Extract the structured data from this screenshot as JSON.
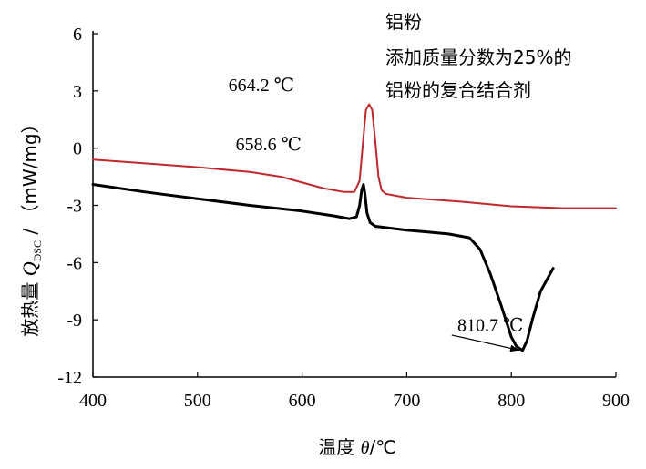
{
  "chart_data": {
    "type": "line",
    "xlabel": {
      "prefix": "温度 ",
      "symbol": "θ",
      "suffix": "/℃"
    },
    "ylabel": {
      "prefix": "放热量 ",
      "symbol": "Q",
      "subscript": "DSC",
      "suffix": " / （mW/mg）"
    },
    "xlim": [
      400,
      900
    ],
    "ylim": [
      -12,
      6
    ],
    "xticks": [
      400,
      500,
      600,
      700,
      800,
      900
    ],
    "yticks": [
      6,
      3,
      0,
      -3,
      -6,
      -9,
      -12
    ],
    "grid": false,
    "legend_text": [
      "铝粉",
      "添加质量分数为25%的",
      "铝粉的复合结合剂"
    ],
    "series": [
      {
        "color": "#c0282b",
        "x": [
          400,
          450,
          500,
          550,
          580,
          600,
          620,
          640,
          650,
          655,
          658,
          661,
          664,
          667,
          670,
          673,
          676,
          680,
          690,
          700,
          750,
          800,
          850,
          900
        ],
        "y": [
          -0.6,
          -0.8,
          -1.0,
          -1.25,
          -1.5,
          -1.8,
          -2.1,
          -2.3,
          -2.3,
          -1.7,
          0.2,
          2.0,
          2.3,
          2.0,
          0.3,
          -1.5,
          -2.2,
          -2.4,
          -2.5,
          -2.6,
          -2.8,
          -3.05,
          -3.15,
          -3.15
        ]
      },
      {
        "color": "#000000",
        "x": [
          400,
          450,
          500,
          550,
          600,
          630,
          645,
          652,
          655,
          657,
          658.6,
          660,
          662,
          665,
          670,
          700,
          720,
          740,
          760,
          770,
          780,
          790,
          800,
          805,
          810.7,
          815,
          820,
          828,
          840
        ],
        "y": [
          -1.9,
          -2.3,
          -2.65,
          -3.0,
          -3.3,
          -3.55,
          -3.7,
          -3.6,
          -3.0,
          -2.2,
          -1.9,
          -2.4,
          -3.4,
          -3.9,
          -4.1,
          -4.3,
          -4.4,
          -4.5,
          -4.7,
          -5.3,
          -6.6,
          -8.2,
          -9.9,
          -10.4,
          -10.6,
          -10.1,
          -9.0,
          -7.5,
          -6.3
        ]
      }
    ],
    "annotations": [
      {
        "text": "664.2 ℃",
        "x": 561,
        "y": 3.0
      },
      {
        "text": "658.6 ℃",
        "x": 568,
        "y": -0.1
      },
      {
        "text": "810.7 ℃",
        "x": 780,
        "y": -9.6
      }
    ],
    "arrow": {
      "from": [
        743,
        -9.8
      ],
      "to": [
        808,
        -10.6
      ]
    }
  }
}
